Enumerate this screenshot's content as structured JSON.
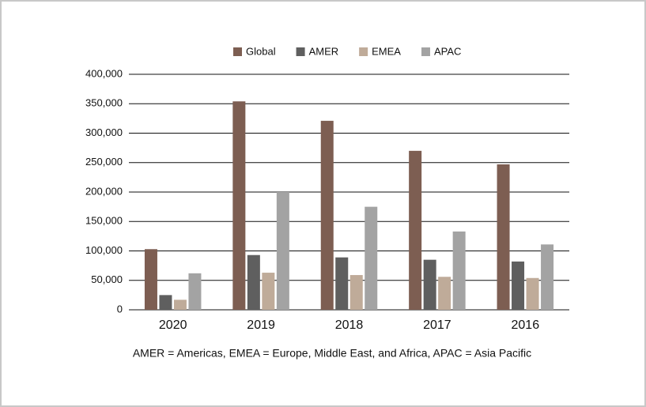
{
  "chart_data": {
    "type": "bar",
    "categories": [
      "2020",
      "2019",
      "2018",
      "2017",
      "2016"
    ],
    "series": [
      {
        "name": "Global",
        "color": "#7d5e52",
        "values": [
          103000,
          354000,
          321000,
          270000,
          247000
        ]
      },
      {
        "name": "AMER",
        "color": "#5f5f5f",
        "values": [
          25000,
          93000,
          89000,
          85000,
          82000
        ]
      },
      {
        "name": "EMEA",
        "color": "#bfab99",
        "values": [
          17000,
          63000,
          59000,
          56000,
          54000
        ]
      },
      {
        "name": "APAC",
        "color": "#a3a3a3",
        "values": [
          62000,
          200000,
          175000,
          133000,
          111000
        ]
      }
    ],
    "ylim": [
      0,
      400000
    ],
    "yticks": [
      0,
      {
        "value": 50000,
        "label": "50,000"
      },
      {
        "value": 100000,
        "label": "100,000"
      },
      {
        "value": 150000,
        "label": "150,000"
      },
      {
        "value": 200000,
        "label": "200,000"
      },
      {
        "value": 250000,
        "label": "250,000"
      },
      {
        "value": 300000,
        "label": "300,000"
      },
      {
        "value": 350000,
        "label": "350,000"
      },
      {
        "value": 400000,
        "label": "400,000"
      }
    ],
    "grid": true,
    "legend": "top",
    "annotation": "AMER = Americas, EMEA = Europe, Middle East, and Africa, APAC = Asia Pacific"
  }
}
